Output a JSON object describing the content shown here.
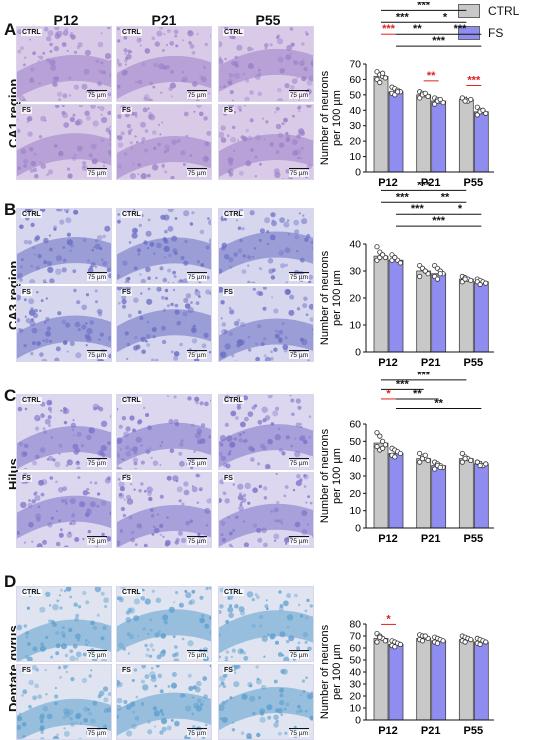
{
  "column_headers": [
    "P12",
    "P21",
    "P55"
  ],
  "legend": [
    {
      "label": "CTRL",
      "color": "#c8c8c8"
    },
    {
      "label": "FS",
      "color": "#8f8ef0"
    }
  ],
  "image_labels": {
    "ctrl": "CTRL",
    "fs": "FS",
    "scale_bar": "75 µm"
  },
  "colors": {
    "ctrl_bar": "#c8c8c8",
    "fs_bar": "#8f8ef0",
    "sig_black": "#111111",
    "sig_red": "#e0201b"
  },
  "panels": [
    {
      "letter": "A",
      "region": "CA1 region",
      "stain": "#9a7fc8",
      "stain_light": "#d9cbe8"
    },
    {
      "letter": "B",
      "region": "CA3 region",
      "stain": "#6b6fc4",
      "stain_light": "#d6d6ee"
    },
    {
      "letter": "C",
      "region": "Hilus",
      "stain": "#7c72c8",
      "stain_light": "#dcd7ef"
    },
    {
      "letter": "D",
      "region": "Dentate gyrus",
      "stain": "#5d9fce",
      "stain_light": "#dfe4f0"
    }
  ],
  "chart_data": [
    {
      "type": "bar",
      "panel": "A",
      "categories": [
        "P12",
        "P21",
        "P55"
      ],
      "ylabel": "Number of neurons per 100 µm",
      "ylim": [
        0,
        70
      ],
      "yticks": [
        0,
        10,
        20,
        30,
        40,
        50,
        60,
        70
      ],
      "series": [
        {
          "name": "CTRL",
          "values": [
            62,
            50,
            47
          ],
          "points": [
            [
              65,
              63,
              62,
              61,
              60,
              58,
              64
            ],
            [
              52,
              51,
              50,
              49,
              48,
              50,
              51
            ],
            [
              48,
              47,
              46,
              47,
              48,
              46
            ]
          ]
        },
        {
          "name": "FS",
          "values": [
            52,
            46,
            39
          ],
          "points": [
            [
              55,
              54,
              53,
              52,
              51,
              50,
              52
            ],
            [
              48,
              47,
              46,
              45,
              44,
              46,
              47
            ],
            [
              42,
              40,
              39,
              38,
              37,
              39,
              40
            ]
          ]
        }
      ],
      "significance": [
        {
          "from": [
            0,
            0
          ],
          "to": [
            2,
            0
          ],
          "label": "***",
          "color": "black",
          "level": 4
        },
        {
          "from": [
            0,
            0
          ],
          "to": [
            1,
            0
          ],
          "label": "***",
          "color": "black",
          "level": 3
        },
        {
          "from": [
            1,
            0
          ],
          "to": [
            2,
            0
          ],
          "label": "*",
          "color": "black",
          "level": 3
        },
        {
          "from": [
            0,
            0
          ],
          "to": [
            0,
            1
          ],
          "label": "***",
          "color": "red",
          "level": 2
        },
        {
          "from": [
            0,
            1
          ],
          "to": [
            1,
            1
          ],
          "label": "**",
          "color": "black",
          "level": 2
        },
        {
          "from": [
            1,
            1
          ],
          "to": [
            2,
            1
          ],
          "label": "***",
          "color": "black",
          "level": 2
        },
        {
          "from": [
            0,
            1
          ],
          "to": [
            2,
            1
          ],
          "label": "***",
          "color": "black",
          "level": 1
        },
        {
          "from": [
            1,
            0
          ],
          "to": [
            1,
            1
          ],
          "label": "**",
          "color": "red",
          "level": 0
        },
        {
          "from": [
            2,
            0
          ],
          "to": [
            2,
            1
          ],
          "label": "***",
          "color": "red",
          "level": 0
        }
      ]
    },
    {
      "type": "bar",
      "panel": "B",
      "categories": [
        "P12",
        "P21",
        "P55"
      ],
      "ylabel": "Number of neurons per 100 µm",
      "ylim": [
        0,
        40
      ],
      "yticks": [
        0,
        10,
        20,
        30,
        40
      ],
      "series": [
        {
          "name": "CTRL",
          "values": [
            35.5,
            30,
            27
          ],
          "points": [
            [
              39,
              37,
              36,
              35,
              34,
              35,
              36
            ],
            [
              32,
              31,
              30,
              29,
              28,
              31,
              30
            ],
            [
              28,
              27.5,
              27,
              26.5,
              26,
              27
            ]
          ]
        },
        {
          "name": "FS",
          "values": [
            34,
            29,
            26
          ],
          "points": [
            [
              36,
              35,
              34,
              33,
              34,
              35
            ],
            [
              32,
              31,
              30,
              29,
              28,
              27,
              29
            ],
            [
              27,
              26.5,
              26,
              25.5,
              26,
              25
            ]
          ]
        }
      ],
      "significance": [
        {
          "from": [
            0,
            0
          ],
          "to": [
            2,
            0
          ],
          "label": "***",
          "color": "black",
          "level": 4
        },
        {
          "from": [
            0,
            0
          ],
          "to": [
            1,
            0
          ],
          "label": "***",
          "color": "black",
          "level": 3
        },
        {
          "from": [
            1,
            0
          ],
          "to": [
            2,
            0
          ],
          "label": "**",
          "color": "black",
          "level": 3
        },
        {
          "from": [
            0,
            1
          ],
          "to": [
            1,
            1
          ],
          "label": "***",
          "color": "black",
          "level": 2
        },
        {
          "from": [
            1,
            1
          ],
          "to": [
            2,
            1
          ],
          "label": "*",
          "color": "black",
          "level": 2
        },
        {
          "from": [
            0,
            1
          ],
          "to": [
            2,
            1
          ],
          "label": "***",
          "color": "black",
          "level": 1
        }
      ]
    },
    {
      "type": "bar",
      "panel": "C",
      "categories": [
        "P12",
        "P21",
        "P55"
      ],
      "ylabel": "Number of neurons per 100 µm",
      "ylim": [
        0,
        60
      ],
      "yticks": [
        0,
        10,
        20,
        30,
        40,
        50,
        60
      ],
      "series": [
        {
          "name": "CTRL",
          "values": [
            49,
            40,
            40
          ],
          "points": [
            [
              55,
              53,
              50,
              48,
              47,
              45,
              46
            ],
            [
              43,
              41,
              40,
              39,
              38,
              40,
              42
            ],
            [
              43,
              41,
              40,
              39,
              38,
              40
            ]
          ]
        },
        {
          "name": "FS",
          "values": [
            43,
            36,
            37
          ],
          "points": [
            [
              46,
              45,
              44,
              43,
              42,
              41
            ],
            [
              38,
              37,
              36,
              35,
              34,
              36,
              35
            ],
            [
              38,
              37,
              36,
              37,
              38,
              36
            ]
          ]
        }
      ],
      "significance": [
        {
          "from": [
            0,
            0
          ],
          "to": [
            2,
            0
          ],
          "label": "***",
          "color": "black",
          "level": 4
        },
        {
          "from": [
            0,
            0
          ],
          "to": [
            1,
            0
          ],
          "label": "***",
          "color": "black",
          "level": 3
        },
        {
          "from": [
            0,
            0
          ],
          "to": [
            0,
            1
          ],
          "label": "*",
          "color": "red",
          "level": 2
        },
        {
          "from": [
            0,
            1
          ],
          "to": [
            1,
            1
          ],
          "label": "**",
          "color": "black",
          "level": 2
        },
        {
          "from": [
            0,
            1
          ],
          "to": [
            2,
            1
          ],
          "label": "**",
          "color": "black",
          "level": 1
        }
      ]
    },
    {
      "type": "bar",
      "panel": "D",
      "categories": [
        "P12",
        "P21",
        "P55"
      ],
      "ylabel": "Number of neurons per 100 µm",
      "ylim": [
        0,
        80
      ],
      "yticks": [
        0,
        10,
        20,
        30,
        40,
        50,
        60,
        70,
        80
      ],
      "series": [
        {
          "name": "CTRL",
          "values": [
            68,
            68,
            67
          ],
          "points": [
            [
              72,
              70,
              68,
              66,
              65,
              69
            ],
            [
              71,
              70,
              69,
              68,
              67,
              66,
              70
            ],
            [
              70,
              69,
              68,
              67,
              66,
              65
            ]
          ]
        },
        {
          "name": "FS",
          "values": [
            63,
            66,
            65
          ],
          "points": [
            [
              66,
              65,
              64,
              63,
              62,
              61
            ],
            [
              69,
              68,
              67,
              66,
              65,
              64
            ],
            [
              68,
              67,
              66,
              65,
              64,
              63
            ]
          ]
        }
      ],
      "significance": [
        {
          "from": [
            0,
            0
          ],
          "to": [
            0,
            1
          ],
          "label": "*",
          "color": "red",
          "level": 0
        }
      ]
    }
  ]
}
